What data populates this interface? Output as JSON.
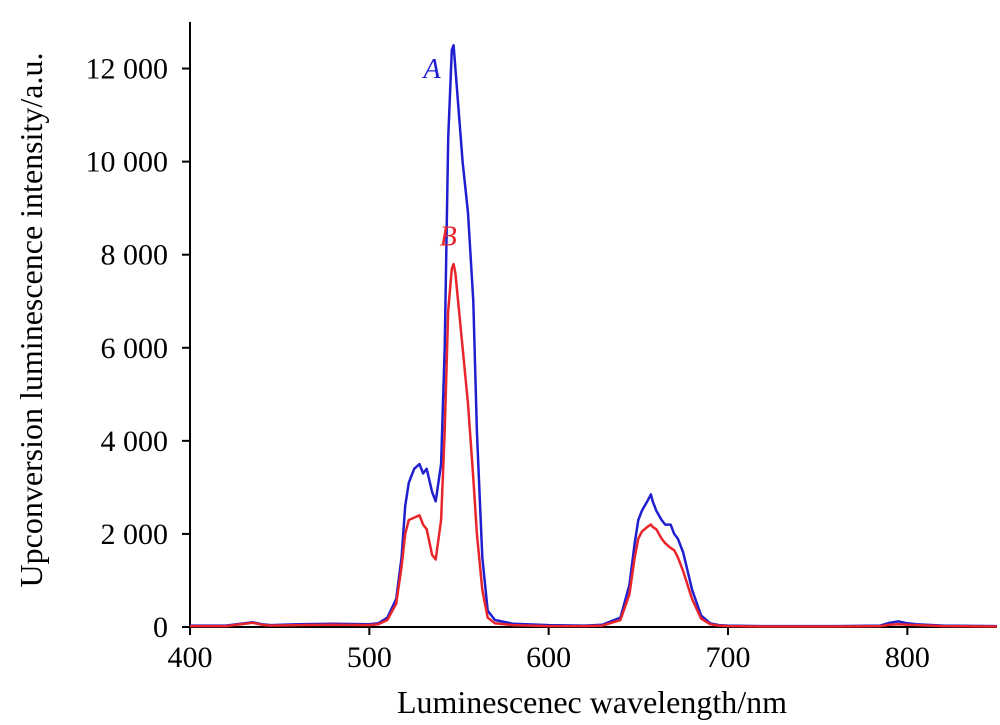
{
  "chart_data": {
    "type": "line",
    "xlabel": "Luminescenec wavelength/nm",
    "ylabel": "Upconversion luminescence intensity/a.u.",
    "xlim": [
      400,
      850
    ],
    "ylim": [
      0,
      13000
    ],
    "x_ticks": [
      400,
      500,
      600,
      700,
      800
    ],
    "y_ticks": [
      0,
      2000,
      4000,
      6000,
      8000,
      10000,
      12000
    ],
    "y_tick_labels": [
      "0",
      "2 000",
      "4 000",
      "6 000",
      "8 000",
      "10 000",
      "12 000"
    ],
    "grid": false,
    "series": [
      {
        "name": "A",
        "color": "#1f1fd0",
        "x": [
          400,
          420,
          435,
          440,
          445,
          460,
          480,
          500,
          505,
          510,
          515,
          518,
          520,
          522,
          525,
          528,
          530,
          532,
          535,
          537,
          540,
          542,
          544,
          546,
          547,
          548,
          550,
          552,
          555,
          558,
          560,
          563,
          566,
          570,
          580,
          600,
          620,
          630,
          640,
          645,
          648,
          650,
          652,
          655,
          657,
          658,
          660,
          663,
          665,
          668,
          670,
          672,
          675,
          680,
          685,
          690,
          695,
          700,
          720,
          760,
          785,
          790,
          795,
          800,
          805,
          820,
          850
        ],
        "y": [
          30,
          30,
          100,
          60,
          40,
          60,
          70,
          60,
          80,
          200,
          600,
          1500,
          2600,
          3100,
          3400,
          3500,
          3300,
          3400,
          2900,
          2700,
          3500,
          6000,
          10500,
          12400,
          12500,
          12000,
          11000,
          10000,
          8900,
          7000,
          4200,
          1500,
          350,
          150,
          70,
          40,
          30,
          50,
          200,
          900,
          1800,
          2300,
          2500,
          2700,
          2850,
          2700,
          2500,
          2300,
          2200,
          2200,
          2000,
          1900,
          1600,
          800,
          250,
          80,
          40,
          30,
          20,
          20,
          30,
          90,
          120,
          80,
          60,
          30,
          20
        ]
      },
      {
        "name": "B",
        "color": "#e8252b",
        "x": [
          400,
          420,
          435,
          440,
          445,
          460,
          480,
          500,
          505,
          510,
          515,
          518,
          520,
          522,
          525,
          528,
          530,
          532,
          535,
          537,
          540,
          542,
          544,
          546,
          547,
          548,
          550,
          552,
          555,
          558,
          560,
          563,
          566,
          570,
          580,
          600,
          620,
          630,
          640,
          645,
          648,
          650,
          652,
          655,
          657,
          658,
          660,
          663,
          665,
          668,
          670,
          672,
          675,
          680,
          685,
          690,
          695,
          700,
          720,
          760,
          785,
          790,
          795,
          800,
          805,
          820,
          850
        ],
        "y": [
          20,
          20,
          90,
          50,
          30,
          40,
          50,
          40,
          60,
          150,
          500,
          1300,
          2000,
          2300,
          2350,
          2400,
          2200,
          2100,
          1550,
          1450,
          2300,
          4200,
          6800,
          7700,
          7800,
          7600,
          6800,
          6000,
          4800,
          3200,
          2000,
          800,
          200,
          80,
          40,
          20,
          20,
          30,
          150,
          700,
          1500,
          1900,
          2050,
          2150,
          2200,
          2150,
          2100,
          1900,
          1800,
          1700,
          1650,
          1500,
          1200,
          600,
          180,
          60,
          30,
          20,
          10,
          10,
          20,
          50,
          60,
          50,
          40,
          20,
          10
        ]
      }
    ],
    "annotations": [
      {
        "text": "A",
        "x": 535,
        "y": 11800
      },
      {
        "text": "B",
        "x": 544,
        "y": 8200
      }
    ]
  }
}
